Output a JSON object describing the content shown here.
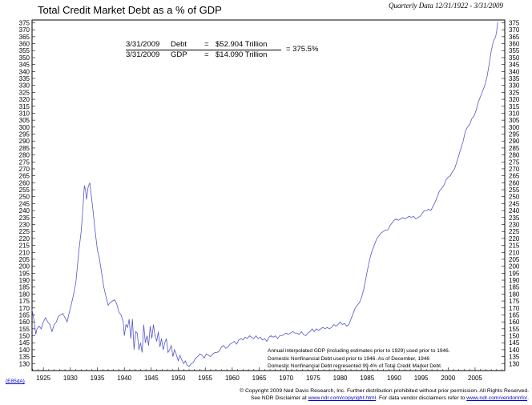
{
  "header": {
    "title": "Total Credit Market Debt as a % of GDP",
    "date_range": "Quarterly Data 12/31/1922 - 3/31/2009"
  },
  "formula": {
    "debt_date": "3/31/2009",
    "debt_label": "Debt",
    "debt_eq": "=",
    "debt_value": "$52.904 Trillion",
    "gdp_date": "3/31/2009",
    "gdp_label": "GDP",
    "gdp_eq": "=",
    "gdp_value": "$14.090 Trillion",
    "result": "= 375.5%"
  },
  "notes": [
    "Annual interpolated GDP (including estimates prior to 1929) used prior to 1946.",
    "Domestic Nonfinancial Debt used prior to 1946. As of December, 1946",
    "Domestic Nonfinancial Debt represented 99.4% of Total Credit Market Debt."
  ],
  "footer": {
    "line1": "© Copyright 2009 Ned Davis Research, Inc.  Further distribution prohibited without prior permission.  All Rights Reserved.",
    "line2_prefix": "See NDR Disclaimer at ",
    "link1": "www.ndr.com/copyright.html",
    "line2_mid": ".  For data vendor disclaimers refer to ",
    "link2": "www.ndr.com/vendorinfo/",
    "line2_suffix": "."
  },
  "chart_code": "(E85dA)",
  "colors": {
    "series": "#5555cc",
    "axis": "#000000"
  },
  "chart_data": {
    "type": "line",
    "title": "Total Credit Market Debt as a % of GDP",
    "xlabel": "",
    "ylabel": "",
    "xlim": [
      1922.9,
      2010.5
    ],
    "ylim": [
      125,
      377
    ],
    "y_ticks": [
      130,
      135,
      140,
      145,
      150,
      155,
      160,
      165,
      170,
      175,
      180,
      185,
      190,
      195,
      200,
      205,
      210,
      215,
      220,
      225,
      230,
      235,
      240,
      245,
      250,
      255,
      260,
      265,
      270,
      275,
      280,
      285,
      290,
      295,
      300,
      305,
      310,
      315,
      320,
      325,
      330,
      335,
      340,
      345,
      350,
      355,
      360,
      365,
      370,
      375
    ],
    "x_ticks": [
      1925,
      1930,
      1935,
      1940,
      1945,
      1950,
      1955,
      1960,
      1965,
      1970,
      1975,
      1980,
      1985,
      1990,
      1995,
      2000,
      2005
    ],
    "grid": false,
    "legend": "none",
    "axes": "left and right",
    "series": [
      {
        "points": [
          [
            1922.9,
            169
          ],
          [
            1923.3,
            160
          ],
          [
            1923.6,
            151
          ],
          [
            1923.8,
            155
          ],
          [
            1924.2,
            157
          ],
          [
            1924.6,
            155
          ],
          [
            1925.0,
            160
          ],
          [
            1925.4,
            163
          ],
          [
            1925.8,
            160
          ],
          [
            1926.2,
            158
          ],
          [
            1926.6,
            153
          ],
          [
            1927.0,
            158
          ],
          [
            1927.4,
            160
          ],
          [
            1927.8,
            164
          ],
          [
            1928.2,
            165
          ],
          [
            1928.6,
            166
          ],
          [
            1929.0,
            163
          ],
          [
            1929.4,
            160
          ],
          [
            1929.8,
            167
          ],
          [
            1930.2,
            173
          ],
          [
            1930.6,
            180
          ],
          [
            1931.0,
            188
          ],
          [
            1931.3,
            200
          ],
          [
            1931.6,
            212
          ],
          [
            1932.0,
            225
          ],
          [
            1932.3,
            240
          ],
          [
            1932.6,
            258
          ],
          [
            1932.8,
            255
          ],
          [
            1933.0,
            248
          ],
          [
            1933.3,
            257
          ],
          [
            1933.6,
            260
          ],
          [
            1933.9,
            250
          ],
          [
            1934.2,
            240
          ],
          [
            1934.6,
            225
          ],
          [
            1935.0,
            212
          ],
          [
            1935.4,
            205
          ],
          [
            1935.8,
            195
          ],
          [
            1936.2,
            185
          ],
          [
            1936.6,
            178
          ],
          [
            1937.0,
            172
          ],
          [
            1937.4,
            174
          ],
          [
            1937.8,
            175
          ],
          [
            1938.2,
            176
          ],
          [
            1938.6,
            173
          ],
          [
            1939.0,
            167
          ],
          [
            1939.4,
            165
          ],
          [
            1939.8,
            160
          ],
          [
            1940.0,
            150
          ],
          [
            1940.3,
            158
          ],
          [
            1940.6,
            156
          ],
          [
            1940.9,
            162
          ],
          [
            1941.2,
            148
          ],
          [
            1941.5,
            162
          ],
          [
            1941.8,
            140
          ],
          [
            1942.1,
            153
          ],
          [
            1942.4,
            152
          ],
          [
            1942.7,
            140
          ],
          [
            1943.0,
            145
          ],
          [
            1943.3,
            138
          ],
          [
            1943.6,
            158
          ],
          [
            1943.9,
            145
          ],
          [
            1944.2,
            150
          ],
          [
            1944.5,
            143
          ],
          [
            1944.8,
            157
          ],
          [
            1945.1,
            148
          ],
          [
            1945.4,
            158
          ],
          [
            1945.7,
            150
          ],
          [
            1946.0,
            146
          ],
          [
            1946.3,
            153
          ],
          [
            1946.6,
            142
          ],
          [
            1946.9,
            148
          ],
          [
            1947.2,
            140
          ],
          [
            1947.5,
            145
          ],
          [
            1947.8,
            148
          ],
          [
            1948.1,
            138
          ],
          [
            1948.4,
            140
          ],
          [
            1948.7,
            143
          ],
          [
            1949.0,
            135
          ],
          [
            1949.3,
            140
          ],
          [
            1949.6,
            137
          ],
          [
            1950.0,
            132
          ],
          [
            1950.3,
            136
          ],
          [
            1950.6,
            133
          ],
          [
            1951.0,
            130
          ],
          [
            1951.3,
            132
          ],
          [
            1951.6,
            129
          ],
          [
            1952.0,
            128
          ],
          [
            1952.4,
            130
          ],
          [
            1952.8,
            131
          ],
          [
            1953.2,
            134
          ],
          [
            1953.6,
            135
          ],
          [
            1954.0,
            137
          ],
          [
            1954.4,
            136
          ],
          [
            1954.8,
            134
          ],
          [
            1955.2,
            137
          ],
          [
            1955.6,
            136
          ],
          [
            1956.0,
            135
          ],
          [
            1956.4,
            137
          ],
          [
            1956.8,
            138
          ],
          [
            1957.2,
            138
          ],
          [
            1957.6,
            139
          ],
          [
            1958.0,
            142
          ],
          [
            1958.4,
            143
          ],
          [
            1958.8,
            141
          ],
          [
            1959.2,
            142
          ],
          [
            1959.6,
            144
          ],
          [
            1960.0,
            145
          ],
          [
            1960.4,
            146
          ],
          [
            1960.8,
            144
          ],
          [
            1961.2,
            147
          ],
          [
            1961.6,
            148
          ],
          [
            1962.0,
            147
          ],
          [
            1962.4,
            149
          ],
          [
            1962.8,
            148
          ],
          [
            1963.2,
            150
          ],
          [
            1963.6,
            149
          ],
          [
            1964.0,
            148
          ],
          [
            1964.4,
            150
          ],
          [
            1964.8,
            148
          ],
          [
            1965.2,
            149
          ],
          [
            1965.6,
            147
          ],
          [
            1966.0,
            148
          ],
          [
            1966.4,
            146
          ],
          [
            1966.8,
            149
          ],
          [
            1967.2,
            150
          ],
          [
            1967.6,
            149
          ],
          [
            1968.0,
            150
          ],
          [
            1968.4,
            148
          ],
          [
            1968.8,
            150
          ],
          [
            1969.2,
            150
          ],
          [
            1969.6,
            151
          ],
          [
            1970.0,
            152
          ],
          [
            1970.4,
            151
          ],
          [
            1970.8,
            152
          ],
          [
            1971.2,
            153
          ],
          [
            1971.6,
            152
          ],
          [
            1972.0,
            152
          ],
          [
            1972.4,
            151
          ],
          [
            1972.8,
            153
          ],
          [
            1973.2,
            151
          ],
          [
            1973.6,
            150
          ],
          [
            1974.0,
            152
          ],
          [
            1974.4,
            153
          ],
          [
            1974.8,
            155
          ],
          [
            1975.2,
            153
          ],
          [
            1975.6,
            155
          ],
          [
            1976.0,
            154
          ],
          [
            1976.4,
            155
          ],
          [
            1976.8,
            156
          ],
          [
            1977.2,
            155
          ],
          [
            1977.6,
            156
          ],
          [
            1978.0,
            155
          ],
          [
            1978.4,
            156
          ],
          [
            1978.8,
            158
          ],
          [
            1979.2,
            157
          ],
          [
            1979.6,
            158
          ],
          [
            1980.0,
            160
          ],
          [
            1980.4,
            158
          ],
          [
            1980.8,
            159
          ],
          [
            1981.2,
            157
          ],
          [
            1981.6,
            158
          ],
          [
            1982.0,
            162
          ],
          [
            1982.4,
            166
          ],
          [
            1982.8,
            170
          ],
          [
            1983.2,
            172
          ],
          [
            1983.6,
            174
          ],
          [
            1984.0,
            178
          ],
          [
            1984.4,
            184
          ],
          [
            1984.8,
            192
          ],
          [
            1985.2,
            200
          ],
          [
            1985.6,
            207
          ],
          [
            1986.0,
            212
          ],
          [
            1986.4,
            216
          ],
          [
            1986.8,
            220
          ],
          [
            1987.2,
            222
          ],
          [
            1987.6,
            224
          ],
          [
            1988.0,
            225
          ],
          [
            1988.4,
            226
          ],
          [
            1988.8,
            226
          ],
          [
            1989.2,
            229
          ],
          [
            1989.6,
            231
          ],
          [
            1990.0,
            233
          ],
          [
            1990.4,
            234
          ],
          [
            1990.8,
            233
          ],
          [
            1991.2,
            234
          ],
          [
            1991.6,
            235
          ],
          [
            1992.0,
            234
          ],
          [
            1992.4,
            235
          ],
          [
            1992.8,
            236
          ],
          [
            1993.2,
            235
          ],
          [
            1993.6,
            236
          ],
          [
            1994.0,
            234
          ],
          [
            1994.4,
            235
          ],
          [
            1994.8,
            236
          ],
          [
            1995.2,
            238
          ],
          [
            1995.6,
            240
          ],
          [
            1996.0,
            240
          ],
          [
            1996.4,
            241
          ],
          [
            1996.8,
            240
          ],
          [
            1997.2,
            243
          ],
          [
            1997.6,
            246
          ],
          [
            1998.0,
            250
          ],
          [
            1998.4,
            254
          ],
          [
            1998.8,
            256
          ],
          [
            1999.2,
            258
          ],
          [
            1999.6,
            262
          ],
          [
            2000.0,
            264
          ],
          [
            2000.4,
            265
          ],
          [
            2000.8,
            268
          ],
          [
            2001.2,
            270
          ],
          [
            2001.6,
            275
          ],
          [
            2002.0,
            280
          ],
          [
            2002.4,
            285
          ],
          [
            2002.8,
            290
          ],
          [
            2003.2,
            297
          ],
          [
            2003.6,
            300
          ],
          [
            2004.0,
            302
          ],
          [
            2004.4,
            306
          ],
          [
            2004.8,
            308
          ],
          [
            2005.2,
            312
          ],
          [
            2005.6,
            318
          ],
          [
            2006.0,
            322
          ],
          [
            2006.4,
            326
          ],
          [
            2006.8,
            330
          ],
          [
            2007.2,
            336
          ],
          [
            2007.6,
            345
          ],
          [
            2008.0,
            355
          ],
          [
            2008.4,
            362
          ],
          [
            2008.8,
            365
          ],
          [
            2009.0,
            369
          ],
          [
            2009.2,
            375.5
          ]
        ]
      }
    ]
  }
}
